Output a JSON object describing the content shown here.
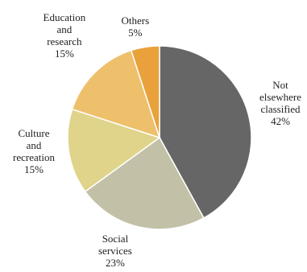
{
  "chart_data": {
    "type": "pie",
    "start": "12 o'clock",
    "direction": "clockwise",
    "slices": [
      {
        "label": [
          "Not",
          "elsewhere",
          "classified"
        ],
        "pct_text": "42%",
        "value": 42,
        "color": "#666666"
      },
      {
        "label": [
          "Social",
          "services"
        ],
        "pct_text": "23%",
        "value": 23,
        "color": "#c2c1a7"
      },
      {
        "label": [
          "Culture",
          "and",
          "recreation"
        ],
        "pct_text": "15%",
        "value": 15,
        "color": "#dfd48a"
      },
      {
        "label": [
          "Education",
          "and",
          "research"
        ],
        "pct_text": "15%",
        "value": 15,
        "color": "#eec06c"
      },
      {
        "label": [
          "Others"
        ],
        "pct_text": "5%",
        "value": 5,
        "color": "#e9a13b"
      }
    ]
  }
}
